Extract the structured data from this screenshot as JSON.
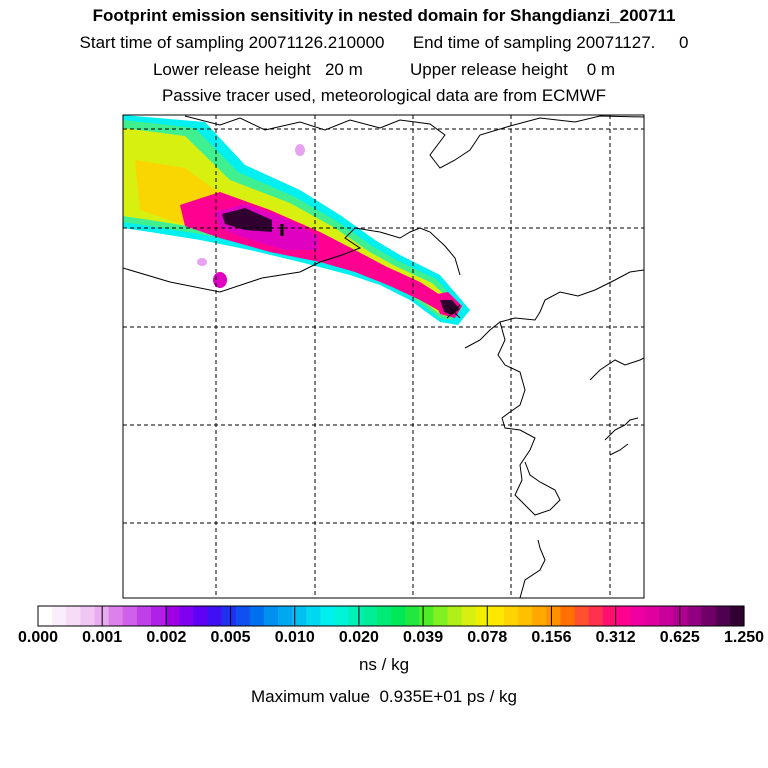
{
  "header": {
    "title": "Footprint emission sensitivity in nested domain for Shangdianzi_200711",
    "start_label": "Start time of sampling 20071126.210000",
    "end_label": "End time of sampling 20071127.     0",
    "lower_label": "Lower release height   20 m",
    "upper_label": "Upper release height    0 m",
    "subtitle": "Passive tracer used, meteorological data are from ECMWF"
  },
  "colorbar": {
    "tick_labels": [
      "0.000",
      "0.001",
      "0.002",
      "0.005",
      "0.010",
      "0.020",
      "0.039",
      "0.078",
      "0.156",
      "0.312",
      "0.625",
      "1.250"
    ],
    "colors": [
      "#ffffff",
      "#fbeefb",
      "#f6dcf6",
      "#f0c6f2",
      "#e9acee",
      "#dc80ec",
      "#d060ea",
      "#c040e8",
      "#b020e6",
      "#a000e4",
      "#8000f0",
      "#6000f4",
      "#4010f4",
      "#2030f0",
      "#1050f0",
      "#0070f0",
      "#0090f0",
      "#00a8f0",
      "#00c0f0",
      "#00d8f0",
      "#00f0f0",
      "#00f4d8",
      "#00f0b8",
      "#00ee98",
      "#00ea78",
      "#00e858",
      "#20e840",
      "#50ec28",
      "#80f020",
      "#b0f018",
      "#d8f010",
      "#f0f000",
      "#ffe800",
      "#ffd400",
      "#ffc000",
      "#ffa800",
      "#ff9000",
      "#ff7000",
      "#ff5030",
      "#ff3050",
      "#ff1070",
      "#ff0090",
      "#f000a0",
      "#e000a0",
      "#c8009c",
      "#b00090",
      "#900080",
      "#700068",
      "#500050",
      "#300030"
    ],
    "units": "ns / kg"
  },
  "footer": {
    "max_value": "Maximum value  0.935E+01 ps / kg"
  },
  "map": {
    "plume_colors": [
      "#00f0f0",
      "#40f090",
      "#d8f010",
      "#ffd000",
      "#ffe860",
      "#ff0090",
      "#e000c0",
      "#80005a",
      "#300030",
      "#e8a0f0"
    ],
    "grid_color": "#000000",
    "coast_color": "#000000"
  }
}
